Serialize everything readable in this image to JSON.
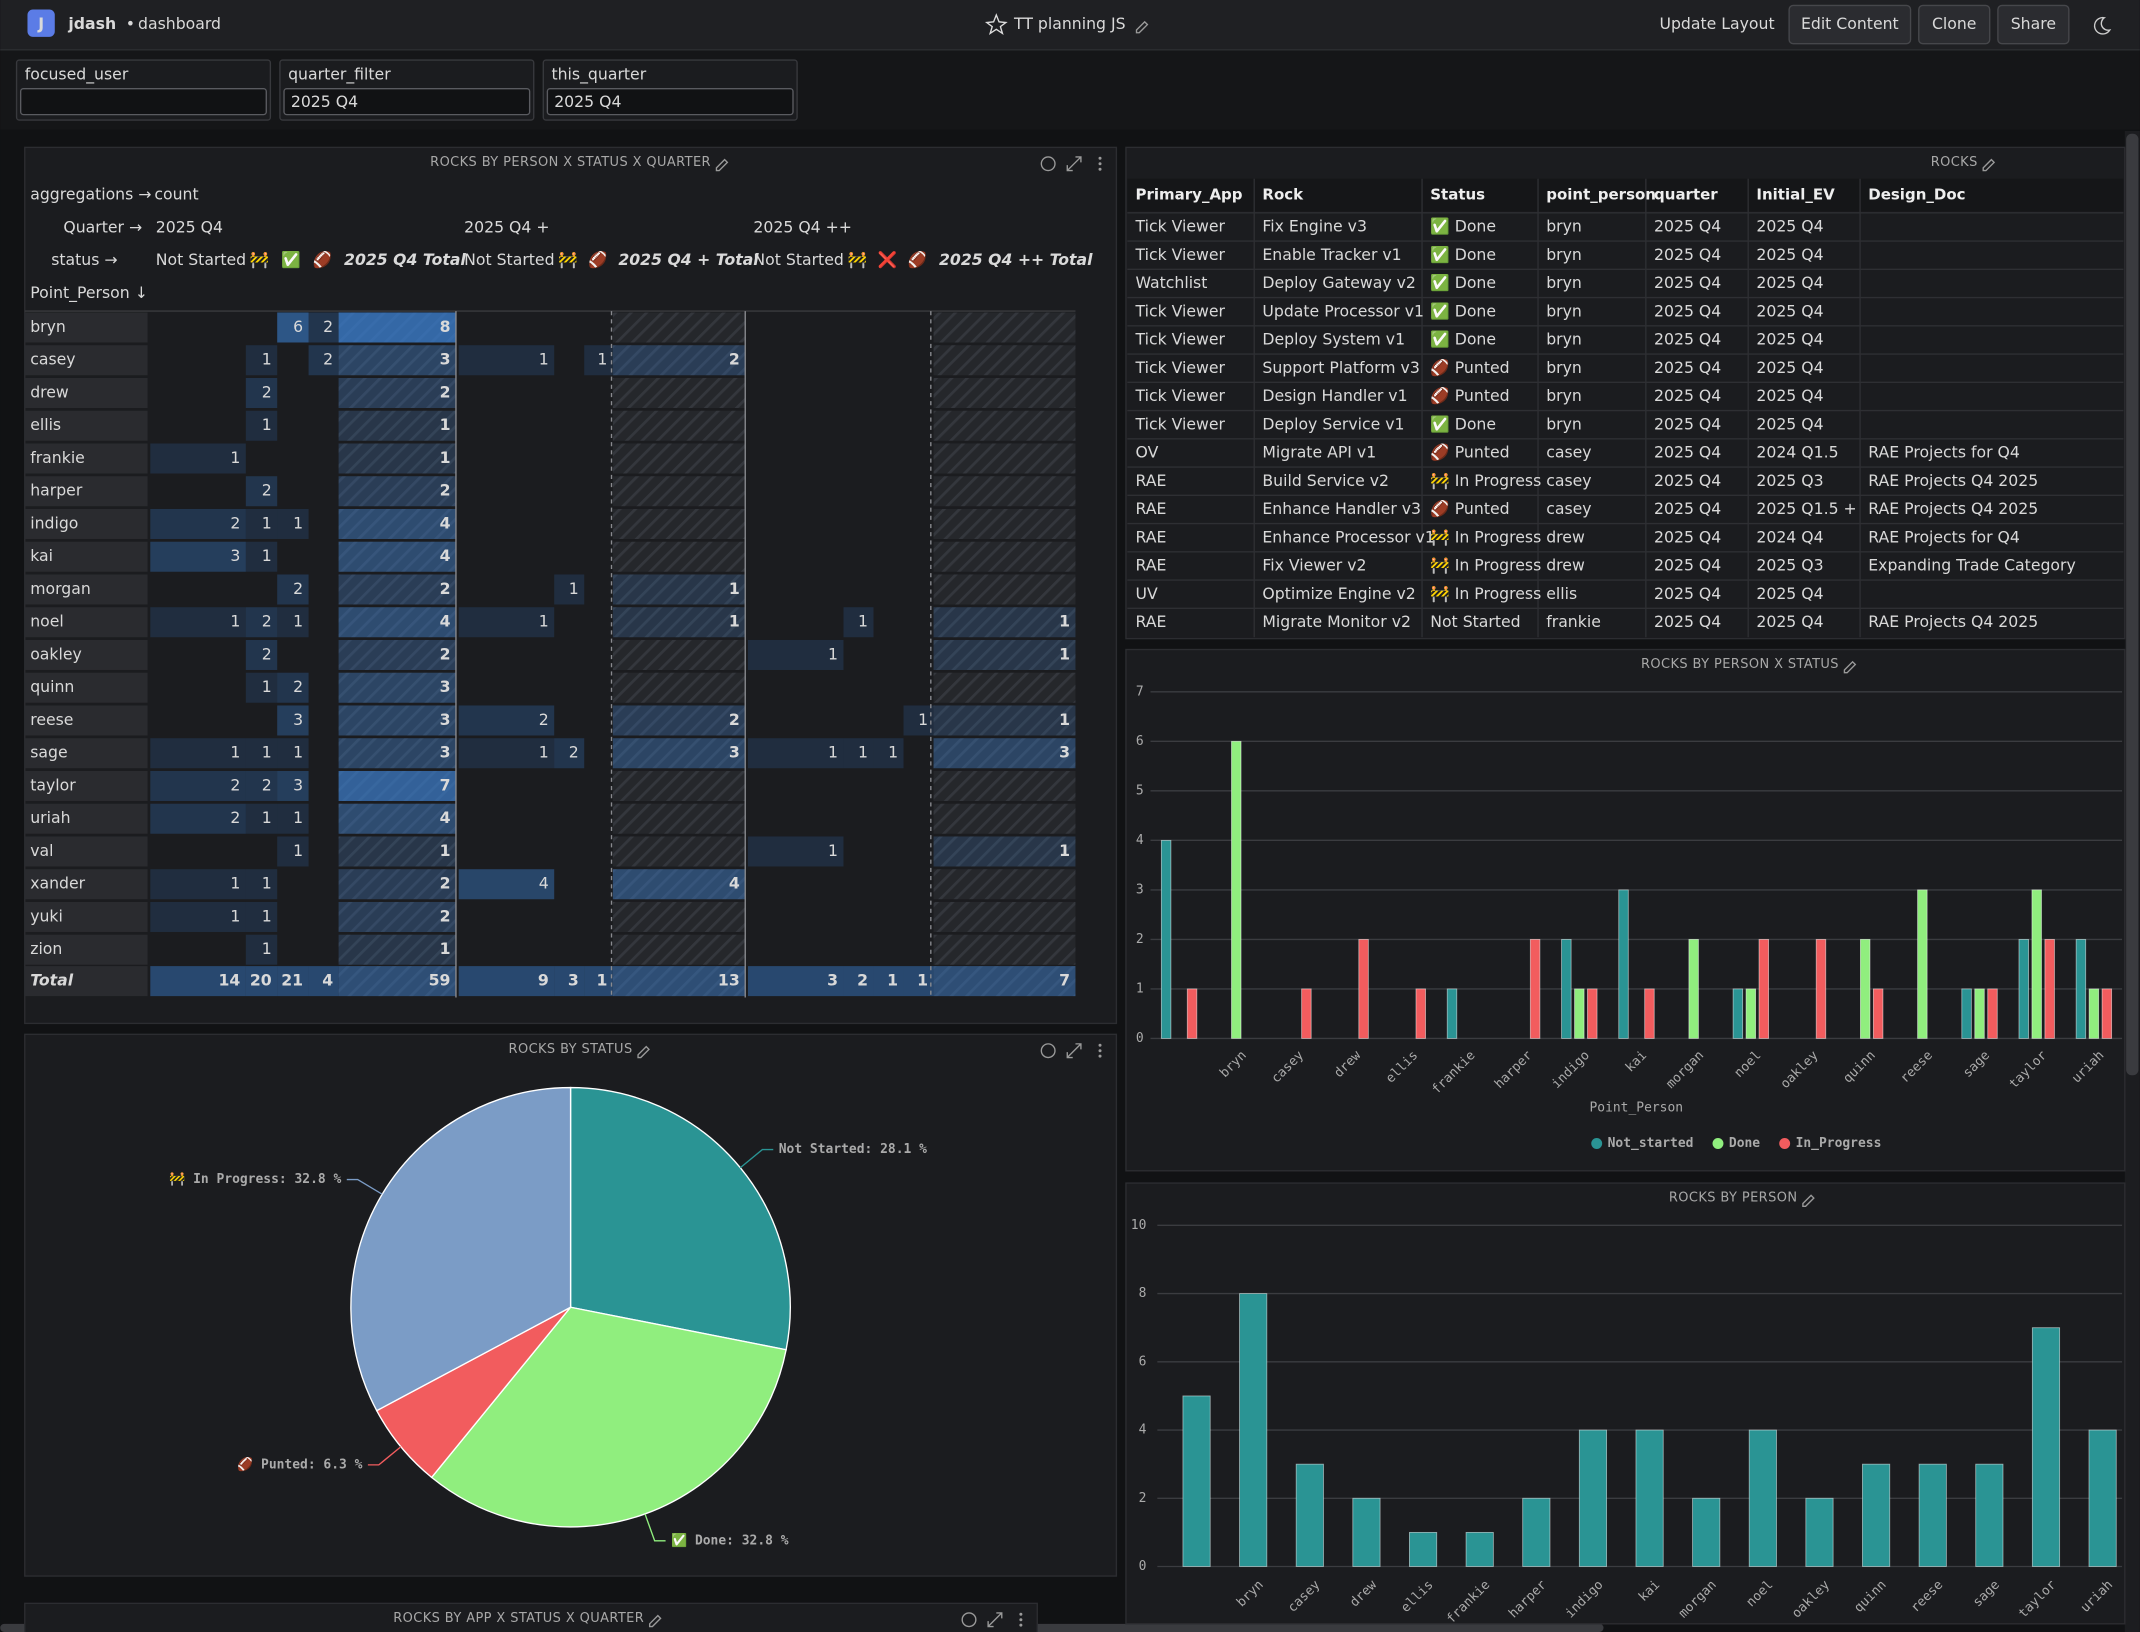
{
  "header": {
    "logo": "J",
    "app": "jdash",
    "separator": "•",
    "section": "dashboard",
    "title": "TT planning JS",
    "buttons": [
      "Update Layout",
      "Edit Content",
      "Clone",
      "Share"
    ]
  },
  "filters": [
    {
      "label": "focused_user"
    },
    {
      "label": "quarter_filter",
      "value": "2025 Q4"
    },
    {
      "label": "this_quarter",
      "value": "2025 Q4"
    }
  ],
  "pivot": {
    "title": "ROCKS BY PERSON X STATUS X QUARTER",
    "aggregations_label": "aggregations →",
    "aggregation": "count",
    "quarter_label": "Quarter →",
    "status_label": "status →",
    "row_label": "Point_Person ↓",
    "groups": [
      {
        "name": "2025 Q4",
        "columns": [
          "Not Started",
          "🚧",
          "✅",
          "🏈",
          "2025 Q4 Total"
        ]
      },
      {
        "name": "2025 Q4 +",
        "columns": [
          "Not Started",
          "🚧",
          "🏈",
          "2025 Q4 + Total"
        ]
      },
      {
        "name": "2025 Q4 ++",
        "columns": [
          "Not Started",
          "🚧",
          "❌",
          "🏈",
          "2025 Q4 ++ Total"
        ]
      }
    ],
    "rows": [
      {
        "name": "bryn",
        "values": [
          null,
          null,
          6,
          2,
          8,
          null,
          null,
          null,
          null,
          null,
          null,
          null,
          null,
          null
        ]
      },
      {
        "name": "casey",
        "values": [
          null,
          1,
          null,
          2,
          3,
          1,
          null,
          1,
          2,
          null,
          null,
          null,
          null,
          null
        ]
      },
      {
        "name": "drew",
        "values": [
          null,
          2,
          null,
          null,
          2,
          null,
          null,
          null,
          null,
          null,
          null,
          null,
          null,
          null
        ]
      },
      {
        "name": "ellis",
        "values": [
          null,
          1,
          null,
          null,
          1,
          null,
          null,
          null,
          null,
          null,
          null,
          null,
          null,
          null
        ]
      },
      {
        "name": "frankie",
        "values": [
          1,
          null,
          null,
          null,
          1,
          null,
          null,
          null,
          null,
          null,
          null,
          null,
          null,
          null
        ]
      },
      {
        "name": "harper",
        "values": [
          null,
          2,
          null,
          null,
          2,
          null,
          null,
          null,
          null,
          null,
          null,
          null,
          null,
          null
        ]
      },
      {
        "name": "indigo",
        "values": [
          2,
          1,
          1,
          null,
          4,
          null,
          null,
          null,
          null,
          null,
          null,
          null,
          null,
          null
        ]
      },
      {
        "name": "kai",
        "values": [
          3,
          1,
          null,
          null,
          4,
          null,
          null,
          null,
          null,
          null,
          null,
          null,
          null,
          null
        ]
      },
      {
        "name": "morgan",
        "values": [
          null,
          null,
          2,
          null,
          2,
          null,
          1,
          null,
          1,
          null,
          null,
          null,
          null,
          null
        ]
      },
      {
        "name": "noel",
        "values": [
          1,
          2,
          1,
          null,
          4,
          1,
          null,
          null,
          1,
          null,
          1,
          null,
          null,
          1
        ]
      },
      {
        "name": "oakley",
        "values": [
          null,
          2,
          null,
          null,
          2,
          null,
          null,
          null,
          null,
          1,
          null,
          null,
          null,
          1
        ]
      },
      {
        "name": "quinn",
        "values": [
          null,
          1,
          2,
          null,
          3,
          null,
          null,
          null,
          null,
          null,
          null,
          null,
          null,
          null
        ]
      },
      {
        "name": "reese",
        "values": [
          null,
          null,
          3,
          null,
          3,
          2,
          null,
          null,
          2,
          null,
          null,
          null,
          1,
          1
        ]
      },
      {
        "name": "sage",
        "values": [
          1,
          1,
          1,
          null,
          3,
          1,
          2,
          null,
          3,
          1,
          1,
          1,
          null,
          3
        ]
      },
      {
        "name": "taylor",
        "values": [
          2,
          2,
          3,
          null,
          7,
          null,
          null,
          null,
          null,
          null,
          null,
          null,
          null,
          null
        ]
      },
      {
        "name": "uriah",
        "values": [
          2,
          1,
          1,
          null,
          4,
          null,
          null,
          null,
          null,
          null,
          null,
          null,
          null,
          null
        ]
      },
      {
        "name": "val",
        "values": [
          null,
          null,
          1,
          null,
          1,
          null,
          null,
          null,
          null,
          1,
          null,
          null,
          null,
          1
        ]
      },
      {
        "name": "xander",
        "values": [
          1,
          1,
          null,
          null,
          2,
          4,
          null,
          null,
          4,
          null,
          null,
          null,
          null,
          null
        ]
      },
      {
        "name": "yuki",
        "values": [
          1,
          1,
          null,
          null,
          2,
          null,
          null,
          null,
          null,
          null,
          null,
          null,
          null,
          null
        ]
      },
      {
        "name": "zion",
        "values": [
          null,
          1,
          null,
          null,
          1,
          null,
          null,
          null,
          null,
          null,
          null,
          null,
          null,
          null
        ]
      }
    ],
    "total": {
      "name": "Total",
      "values": [
        14,
        20,
        21,
        4,
        59,
        9,
        3,
        1,
        13,
        3,
        2,
        1,
        1,
        7
      ]
    }
  },
  "rocks_table": {
    "title": "ROCKS",
    "columns": [
      "Primary_App",
      "Rock",
      "Status",
      "point_person",
      "quarter",
      "Initial_EV",
      "Design_Doc"
    ],
    "rows": [
      [
        "Tick Viewer",
        "Fix Engine v3",
        "✅ Done",
        "bryn",
        "2025 Q4",
        "2025 Q4",
        null
      ],
      [
        "Tick Viewer",
        "Enable Tracker v1",
        "✅ Done",
        "bryn",
        "2025 Q4",
        "2025 Q4",
        null
      ],
      [
        "Watchlist",
        "Deploy Gateway v2",
        "✅ Done",
        "bryn",
        "2025 Q4",
        "2025 Q4",
        null
      ],
      [
        "Tick Viewer",
        "Update Processor v1",
        "✅ Done",
        "bryn",
        "2025 Q4",
        "2025 Q4",
        null
      ],
      [
        "Tick Viewer",
        "Deploy System v1",
        "✅ Done",
        "bryn",
        "2025 Q4",
        "2025 Q4",
        null
      ],
      [
        "Tick Viewer",
        "Support Platform v3",
        "🏈 Punted",
        "bryn",
        "2025 Q4",
        "2025 Q4",
        null
      ],
      [
        "Tick Viewer",
        "Design Handler v1",
        "🏈 Punted",
        "bryn",
        "2025 Q4",
        "2025 Q4",
        null
      ],
      [
        "Tick Viewer",
        "Deploy Service v1",
        "✅ Done",
        "bryn",
        "2025 Q4",
        "2025 Q4",
        null
      ],
      [
        "OV",
        "Migrate API v1",
        "🏈 Punted",
        "casey",
        "2025 Q4",
        "2024 Q1.5",
        "RAE Projects for Q4"
      ],
      [
        "RAE",
        "Build Service v2",
        "🚧 In Progress",
        "casey",
        "2025 Q4",
        "2025 Q3",
        "RAE Projects Q4 2025"
      ],
      [
        "RAE",
        "Enhance Handler v3",
        "🏈 Punted",
        "casey",
        "2025 Q4",
        "2025 Q1.5 +",
        "RAE Projects Q4 2025"
      ],
      [
        "RAE",
        "Enhance Processor v1",
        "🚧 In Progress",
        "drew",
        "2025 Q4",
        "2024 Q4",
        "RAE Projects for Q4"
      ],
      [
        "RAE",
        "Fix Viewer v2",
        "🚧 In Progress",
        "drew",
        "2025 Q4",
        "2025 Q3",
        "Expanding Trade Category"
      ],
      [
        "UV",
        "Optimize Engine v2",
        "🚧 In Progress",
        "ellis",
        "2025 Q4",
        "2025 Q4",
        null
      ],
      [
        "RAE",
        "Migrate Monitor v2",
        "Not Started",
        "frankie",
        "2025 Q4",
        "2025 Q4",
        "RAE Projects Q4 2025"
      ]
    ]
  },
  "bottom_panel": {
    "title": "ROCKS BY APP X STATUS X QUARTER"
  },
  "chart_data": [
    {
      "type": "bar",
      "title": "ROCKS BY PERSON X STATUS",
      "x_label": "Point_Person",
      "categories": [
        null,
        "bryn",
        "casey",
        "drew",
        "ellis",
        "frankie",
        "harper",
        "indigo",
        "kai",
        "morgan",
        "noel",
        "oakley",
        "quinn",
        "reese",
        "sage",
        "taylor",
        "uriah"
      ],
      "series": [
        {
          "name": "Not_started",
          "color": "#2a9494",
          "values": [
            4,
            0,
            0,
            0,
            0,
            1,
            0,
            2,
            3,
            0,
            1,
            0,
            0,
            0,
            1,
            2,
            2
          ]
        },
        {
          "name": "Done",
          "color": "#90ee7e",
          "values": [
            0,
            6,
            0,
            0,
            0,
            0,
            0,
            1,
            0,
            2,
            1,
            0,
            2,
            3,
            1,
            3,
            1
          ]
        },
        {
          "name": "In_Progress",
          "color": "#f25c5e",
          "values": [
            1,
            0,
            1,
            2,
            1,
            0,
            2,
            1,
            1,
            0,
            2,
            2,
            1,
            0,
            1,
            2,
            1
          ]
        }
      ],
      "ylim": [
        0,
        7
      ],
      "yticks": [
        0,
        1,
        2,
        3,
        4,
        5,
        6,
        7
      ],
      "grid": true,
      "legend": "bottom"
    },
    {
      "type": "bar",
      "title": "ROCKS BY PERSON",
      "categories": [
        null,
        "bryn",
        "casey",
        "drew",
        "ellis",
        "frankie",
        "harper",
        "indigo",
        "kai",
        "morgan",
        "noel",
        "oakley",
        "quinn",
        "reese",
        "sage",
        "taylor",
        "uriah"
      ],
      "values": [
        5,
        8,
        3,
        2,
        1,
        1,
        2,
        4,
        4,
        2,
        4,
        2,
        3,
        3,
        3,
        7,
        4
      ],
      "color": "#2a9494",
      "ylim": [
        0,
        10
      ],
      "yticks": [
        0,
        2,
        4,
        6,
        8,
        10
      ],
      "grid": true
    },
    {
      "type": "pie",
      "title": "ROCKS BY STATUS",
      "values": [
        28.1,
        32.8,
        6.3,
        32.8
      ],
      "value_labels": [
        "Not Started: 28.1 %",
        "✅ Done: 32.8 %",
        "🏈 Punted: 6.3 %",
        "🚧 In Progress: 32.8 %"
      ],
      "colors": [
        "#2a9494",
        "#90ee7e",
        "#f25c5e",
        "#7b9cc6"
      ]
    }
  ]
}
